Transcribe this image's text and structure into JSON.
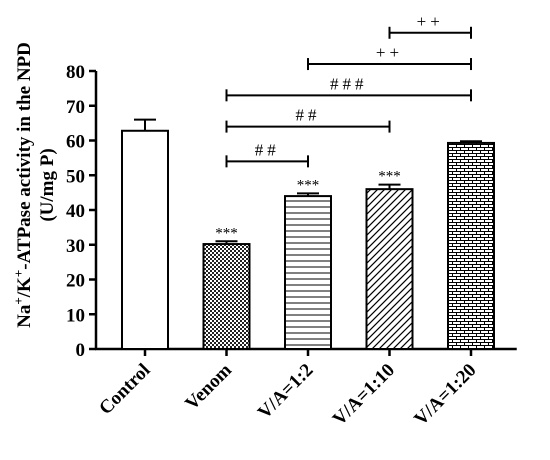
{
  "chart_data": {
    "type": "bar",
    "title": "",
    "ylabel_line1": "Na+/K+-ATPase activity in the NPD",
    "ylabel_line2": "(U/mg P)",
    "ylim": [
      0,
      80
    ],
    "yticks": [
      0,
      10,
      20,
      30,
      40,
      50,
      60,
      70,
      80
    ],
    "grid": false,
    "categories": [
      "Control",
      "Venom",
      "V/A=1:2",
      "V/A=1:10",
      "V/A=1:20"
    ],
    "values": [
      62.8,
      30.2,
      44.0,
      46.0,
      59.3
    ],
    "errors": [
      3.2,
      0.8,
      0.8,
      1.3,
      0.5
    ],
    "patterns": [
      "solid-white",
      "checker",
      "horizontal-lines",
      "diagonal-hatch",
      "brick"
    ],
    "bar_annotations": [
      "",
      "***",
      "***",
      "***",
      ""
    ],
    "comparisons": [
      {
        "from": 1,
        "to": 2,
        "y": 54,
        "label": "##"
      },
      {
        "from": 1,
        "to": 3,
        "y": 64,
        "label": "##"
      },
      {
        "from": 1,
        "to": 4,
        "y": 73,
        "label": "###"
      },
      {
        "from": 2,
        "to": 4,
        "y": 82,
        "label": "++"
      },
      {
        "from": 3,
        "to": 4,
        "y": 91,
        "label": "++"
      }
    ]
  }
}
